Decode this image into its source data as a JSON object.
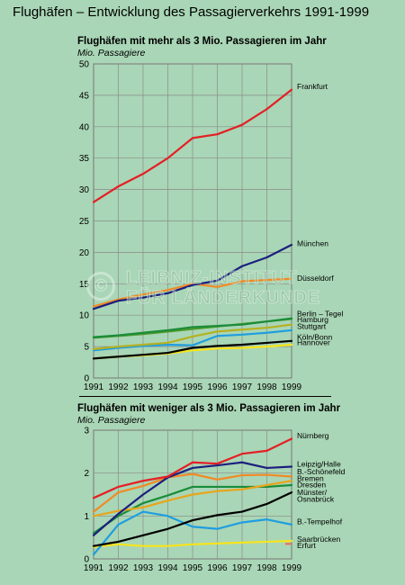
{
  "page_title": "Flughäfen – Entwicklung des Passagierverkehrs 1991-1999",
  "watermark": {
    "line1": "LEIBNIZ-INSTITUT",
    "line2": "FÜR LÄNDERKUNDE",
    "logo": "©"
  },
  "chart_data": [
    {
      "type": "line",
      "title": "Flughäfen mit mehr als 3 Mio. Passagieren im Jahr",
      "ylabel": "Mio. Passagiere",
      "xlabel": "",
      "x": [
        1991,
        1992,
        1993,
        1994,
        1995,
        1996,
        1997,
        1998,
        1999
      ],
      "xlim": [
        1991,
        1999
      ],
      "ylim": [
        0,
        50
      ],
      "yticks": [
        0,
        5,
        10,
        15,
        20,
        25,
        30,
        35,
        40,
        45,
        50
      ],
      "grid": true,
      "series": [
        {
          "name": "Frankfurt",
          "color": "#e41f25",
          "values": [
            28.0,
            30.5,
            32.5,
            35.0,
            38.2,
            38.8,
            40.3,
            42.8,
            45.9
          ]
        },
        {
          "name": "München",
          "color": "#1c1f7e",
          "values": [
            11.0,
            12.3,
            12.8,
            13.5,
            14.8,
            15.5,
            17.8,
            19.2,
            21.2
          ]
        },
        {
          "name": "Düsseldorf",
          "color": "#f08a24",
          "values": [
            11.4,
            12.5,
            13.3,
            14.0,
            15.0,
            14.5,
            15.4,
            15.6,
            15.8
          ]
        },
        {
          "name": "Berlin – Tegel",
          "color": "#1a8c3a",
          "values": [
            6.5,
            6.8,
            7.2,
            7.6,
            8.1,
            8.3,
            8.5,
            9.0,
            9.5
          ]
        },
        {
          "name": "Hamburg",
          "color": "#4c9a2a",
          "values": [
            6.4,
            6.7,
            7.0,
            7.4,
            7.8,
            8.2,
            8.6,
            9.0,
            9.4
          ]
        },
        {
          "name": "Stuttgart",
          "color": "#b5b122",
          "values": [
            4.6,
            5.0,
            5.3,
            5.6,
            6.6,
            7.4,
            7.7,
            8.0,
            8.5
          ]
        },
        {
          "name": "Köln/Bonn",
          "color": "#1f9ee0",
          "values": [
            4.4,
            4.8,
            5.1,
            5.3,
            5.2,
            6.7,
            6.9,
            7.2,
            7.6
          ]
        },
        {
          "name": "Hannover",
          "color": "#000000",
          "values": [
            3.1,
            3.4,
            3.7,
            4.0,
            4.8,
            5.1,
            5.3,
            5.6,
            5.9
          ]
        },
        {
          "name": "",
          "color": "#f7e41c",
          "values": [
            3.1,
            3.4,
            3.6,
            3.9,
            4.4,
            4.7,
            4.8,
            5.0,
            5.3
          ]
        }
      ],
      "labels": [
        {
          "text": "Frankfurt",
          "y": 46.5
        },
        {
          "text": "München",
          "y": 21.5
        },
        {
          "text": "Düsseldorf",
          "y": 16.0
        },
        {
          "text": "Berlin – Tegel",
          "y": 10.3
        },
        {
          "text": "Hamburg",
          "y": 9.4
        },
        {
          "text": "Stuttgart",
          "y": 8.3
        },
        {
          "text": "Köln/Bonn",
          "y": 6.6
        },
        {
          "text": "Hannover",
          "y": 5.7
        }
      ]
    },
    {
      "type": "line",
      "title": "Flughäfen mit weniger als 3 Mio. Passagieren im Jahr",
      "ylabel": "Mio. Passagiere",
      "xlabel": "",
      "x": [
        1991,
        1992,
        1993,
        1994,
        1995,
        1996,
        1997,
        1998,
        1999
      ],
      "xlim": [
        1991,
        1999
      ],
      "ylim": [
        0,
        3
      ],
      "yticks": [
        0,
        1,
        2,
        3
      ],
      "grid": true,
      "series": [
        {
          "name": "Nürnberg",
          "color": "#e41f25",
          "values": [
            1.42,
            1.68,
            1.82,
            1.92,
            2.25,
            2.22,
            2.45,
            2.52,
            2.8
          ]
        },
        {
          "name": "Leipzig/Halle",
          "color": "#1c1f7e",
          "values": [
            0.55,
            1.05,
            1.5,
            1.9,
            2.12,
            2.18,
            2.25,
            2.12,
            2.15
          ]
        },
        {
          "name": "B.-Schönefeld",
          "color": "#f08a24",
          "values": [
            1.1,
            1.55,
            1.7,
            1.9,
            1.98,
            1.85,
            1.95,
            1.96,
            1.92
          ]
        },
        {
          "name": "Bremen",
          "color": "#e8a51c",
          "values": [
            1.0,
            1.12,
            1.2,
            1.36,
            1.5,
            1.58,
            1.62,
            1.72,
            1.82
          ]
        },
        {
          "name": "Dresden",
          "color": "#1a8c3a",
          "values": [
            0.6,
            1.0,
            1.3,
            1.48,
            1.68,
            1.68,
            1.68,
            1.68,
            1.72
          ]
        },
        {
          "name": "Münster/ Osnabrück",
          "color": "#000000",
          "values": [
            0.3,
            0.4,
            0.55,
            0.7,
            0.9,
            1.02,
            1.1,
            1.28,
            1.55
          ]
        },
        {
          "name": "B.-Tempelhof",
          "color": "#1f9ee0",
          "values": [
            0.1,
            0.8,
            1.1,
            1.0,
            0.75,
            0.7,
            0.85,
            0.92,
            0.8
          ]
        },
        {
          "name": "Saarbrücken",
          "color": "#f7e41c",
          "values": [
            0.28,
            0.34,
            0.3,
            0.3,
            0.34,
            0.36,
            0.38,
            0.4,
            0.42
          ]
        },
        {
          "name": "Erfurt",
          "color": "#e8705a",
          "values": [
            null,
            null,
            null,
            null,
            null,
            null,
            null,
            null,
            0.35
          ]
        }
      ],
      "labels": [
        {
          "text": "Nürnberg",
          "y": 2.88
        },
        {
          "text": "Leipzig/Halle",
          "y": 2.22
        },
        {
          "text": "B.-Schönefeld",
          "y": 2.05
        },
        {
          "text": "Bremen",
          "y": 1.89
        },
        {
          "text": "Dresden",
          "y": 1.74
        },
        {
          "text": "Münster/",
          "y": 1.56
        },
        {
          "text": "Osnabrück",
          "y": 1.41
        },
        {
          "text": "B.-Tempelhof",
          "y": 0.88
        },
        {
          "text": "Saarbrücken",
          "y": 0.47
        },
        {
          "text": "Erfurt",
          "y": 0.33
        }
      ]
    }
  ]
}
